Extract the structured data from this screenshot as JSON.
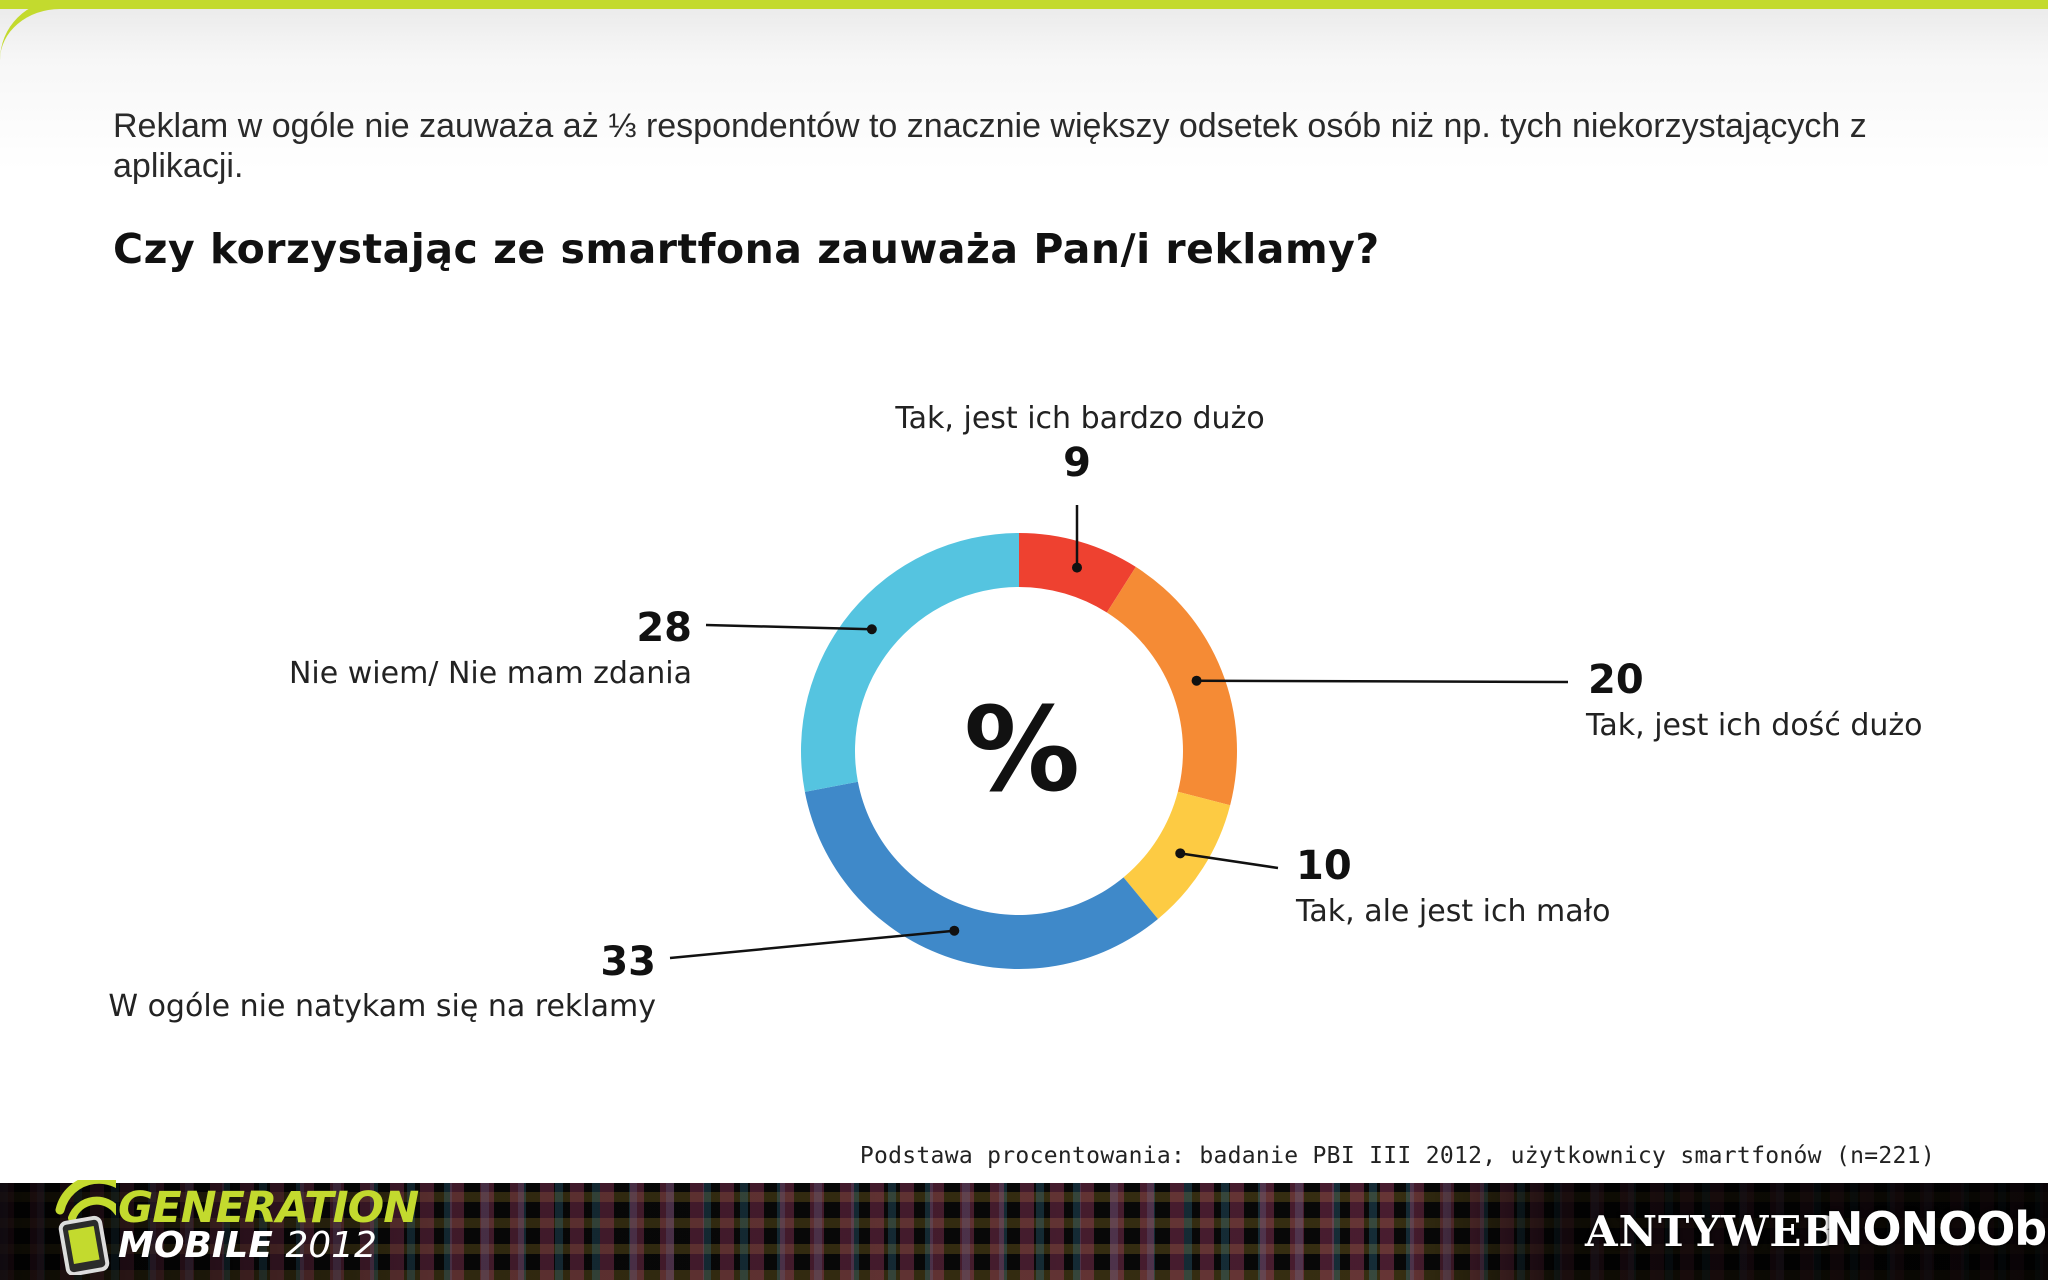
{
  "slide": {
    "intro_text": "Reklam w ogóle nie zauważa aż ⅓ respondentów to znacznie większy odsetek osób niż np. tych niekorzystających z aplikacji.",
    "question": "Czy korzystając ze smartfona zauważa Pan/i reklamy?",
    "note": "Podstawa procentowania: badanie PBI III 2012, użytkownicy smartfonów (n=221)"
  },
  "footer": {
    "logo_line1": "GENERATION",
    "logo_line2": "MOBILE",
    "logo_year": "2012",
    "partner1": "ANTYWEB",
    "partner2": "NONOObS",
    "accent_color": "#c3da2e"
  },
  "chart_data": {
    "type": "pie",
    "title": "Czy korzystając ze smartfona zauważa Pan/i reklamy?",
    "center_label": "%",
    "unit": "%",
    "donut": true,
    "slices": [
      {
        "label": "Tak, jest ich bardzo dużo",
        "value": 9,
        "color": "#ee4130"
      },
      {
        "label": "Tak, jest ich dość dużo",
        "value": 20,
        "color": "#f58b35"
      },
      {
        "label": "Tak, ale jest ich mało",
        "value": 10,
        "color": "#fdcb43"
      },
      {
        "label": "W ogóle nie natykam się na reklamy",
        "value": 33,
        "color": "#3f89c9"
      },
      {
        "label": "Nie wiem/ Nie mam zdania",
        "value": 28,
        "color": "#55c4e0"
      }
    ]
  }
}
